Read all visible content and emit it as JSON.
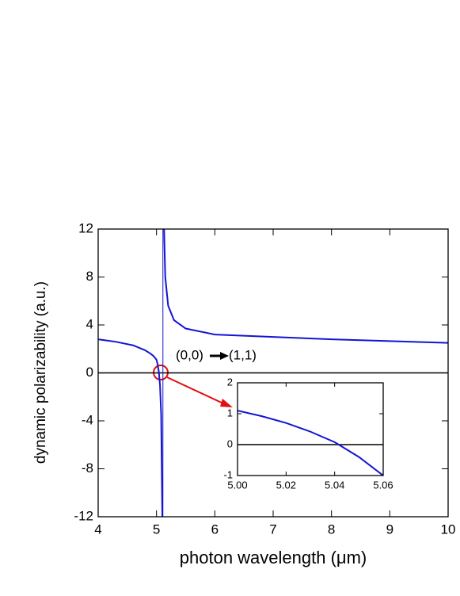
{
  "chart_data": [
    {
      "type": "line",
      "xlabel": "photon wavelength (μm)",
      "ylabel": "dynamic polarizability (a.u.)",
      "xlim": [
        4,
        10
      ],
      "ylim": [
        -12,
        12
      ],
      "xticks": [
        4,
        5,
        6,
        7,
        8,
        9,
        10
      ],
      "yticks": [
        -12,
        -8,
        -4,
        0,
        4,
        8,
        12
      ],
      "zero_line": true,
      "annotations": [
        "(0,0)",
        "(1,1)"
      ],
      "series": [
        {
          "color": "#1414d2",
          "x": [
            4,
            4.3,
            4.6,
            4.8,
            4.9,
            4.95,
            5.0,
            5.02,
            5.04,
            5.06,
            5.08,
            5.1,
            5.11,
            5.13,
            5.15,
            5.2,
            5.3,
            5.5,
            6,
            7,
            8,
            9,
            10
          ],
          "values": [
            2.8,
            2.6,
            2.3,
            1.9,
            1.6,
            1.4,
            1.1,
            0.7,
            0.08,
            -1,
            -3.5,
            -12,
            null,
            12,
            8,
            5.6,
            4.4,
            3.7,
            3.2,
            3.0,
            2.8,
            2.65,
            2.5
          ]
        },
        {
          "color": "#1414d2",
          "x": [
            5.11,
            5.11
          ],
          "values": [
            -12,
            12
          ]
        }
      ]
    },
    {
      "type": "line",
      "xlim": [
        5.0,
        5.06
      ],
      "ylim": [
        -1,
        2
      ],
      "xticks": [
        {
          "value": 5.0,
          "label": "5.00"
        },
        {
          "value": 5.02,
          "label": "5.02"
        },
        {
          "value": 5.04,
          "label": "5.04"
        },
        {
          "value": 5.06,
          "label": "5.06"
        }
      ],
      "yticks": [
        -1,
        0,
        1,
        2
      ],
      "zero_line": true,
      "series": [
        {
          "color": "#1414d2",
          "x": [
            5.0,
            5.01,
            5.02,
            5.03,
            5.04,
            5.05,
            5.06
          ],
          "values": [
            1.1,
            0.92,
            0.7,
            0.42,
            0.08,
            -0.4,
            -1
          ]
        }
      ]
    }
  ]
}
